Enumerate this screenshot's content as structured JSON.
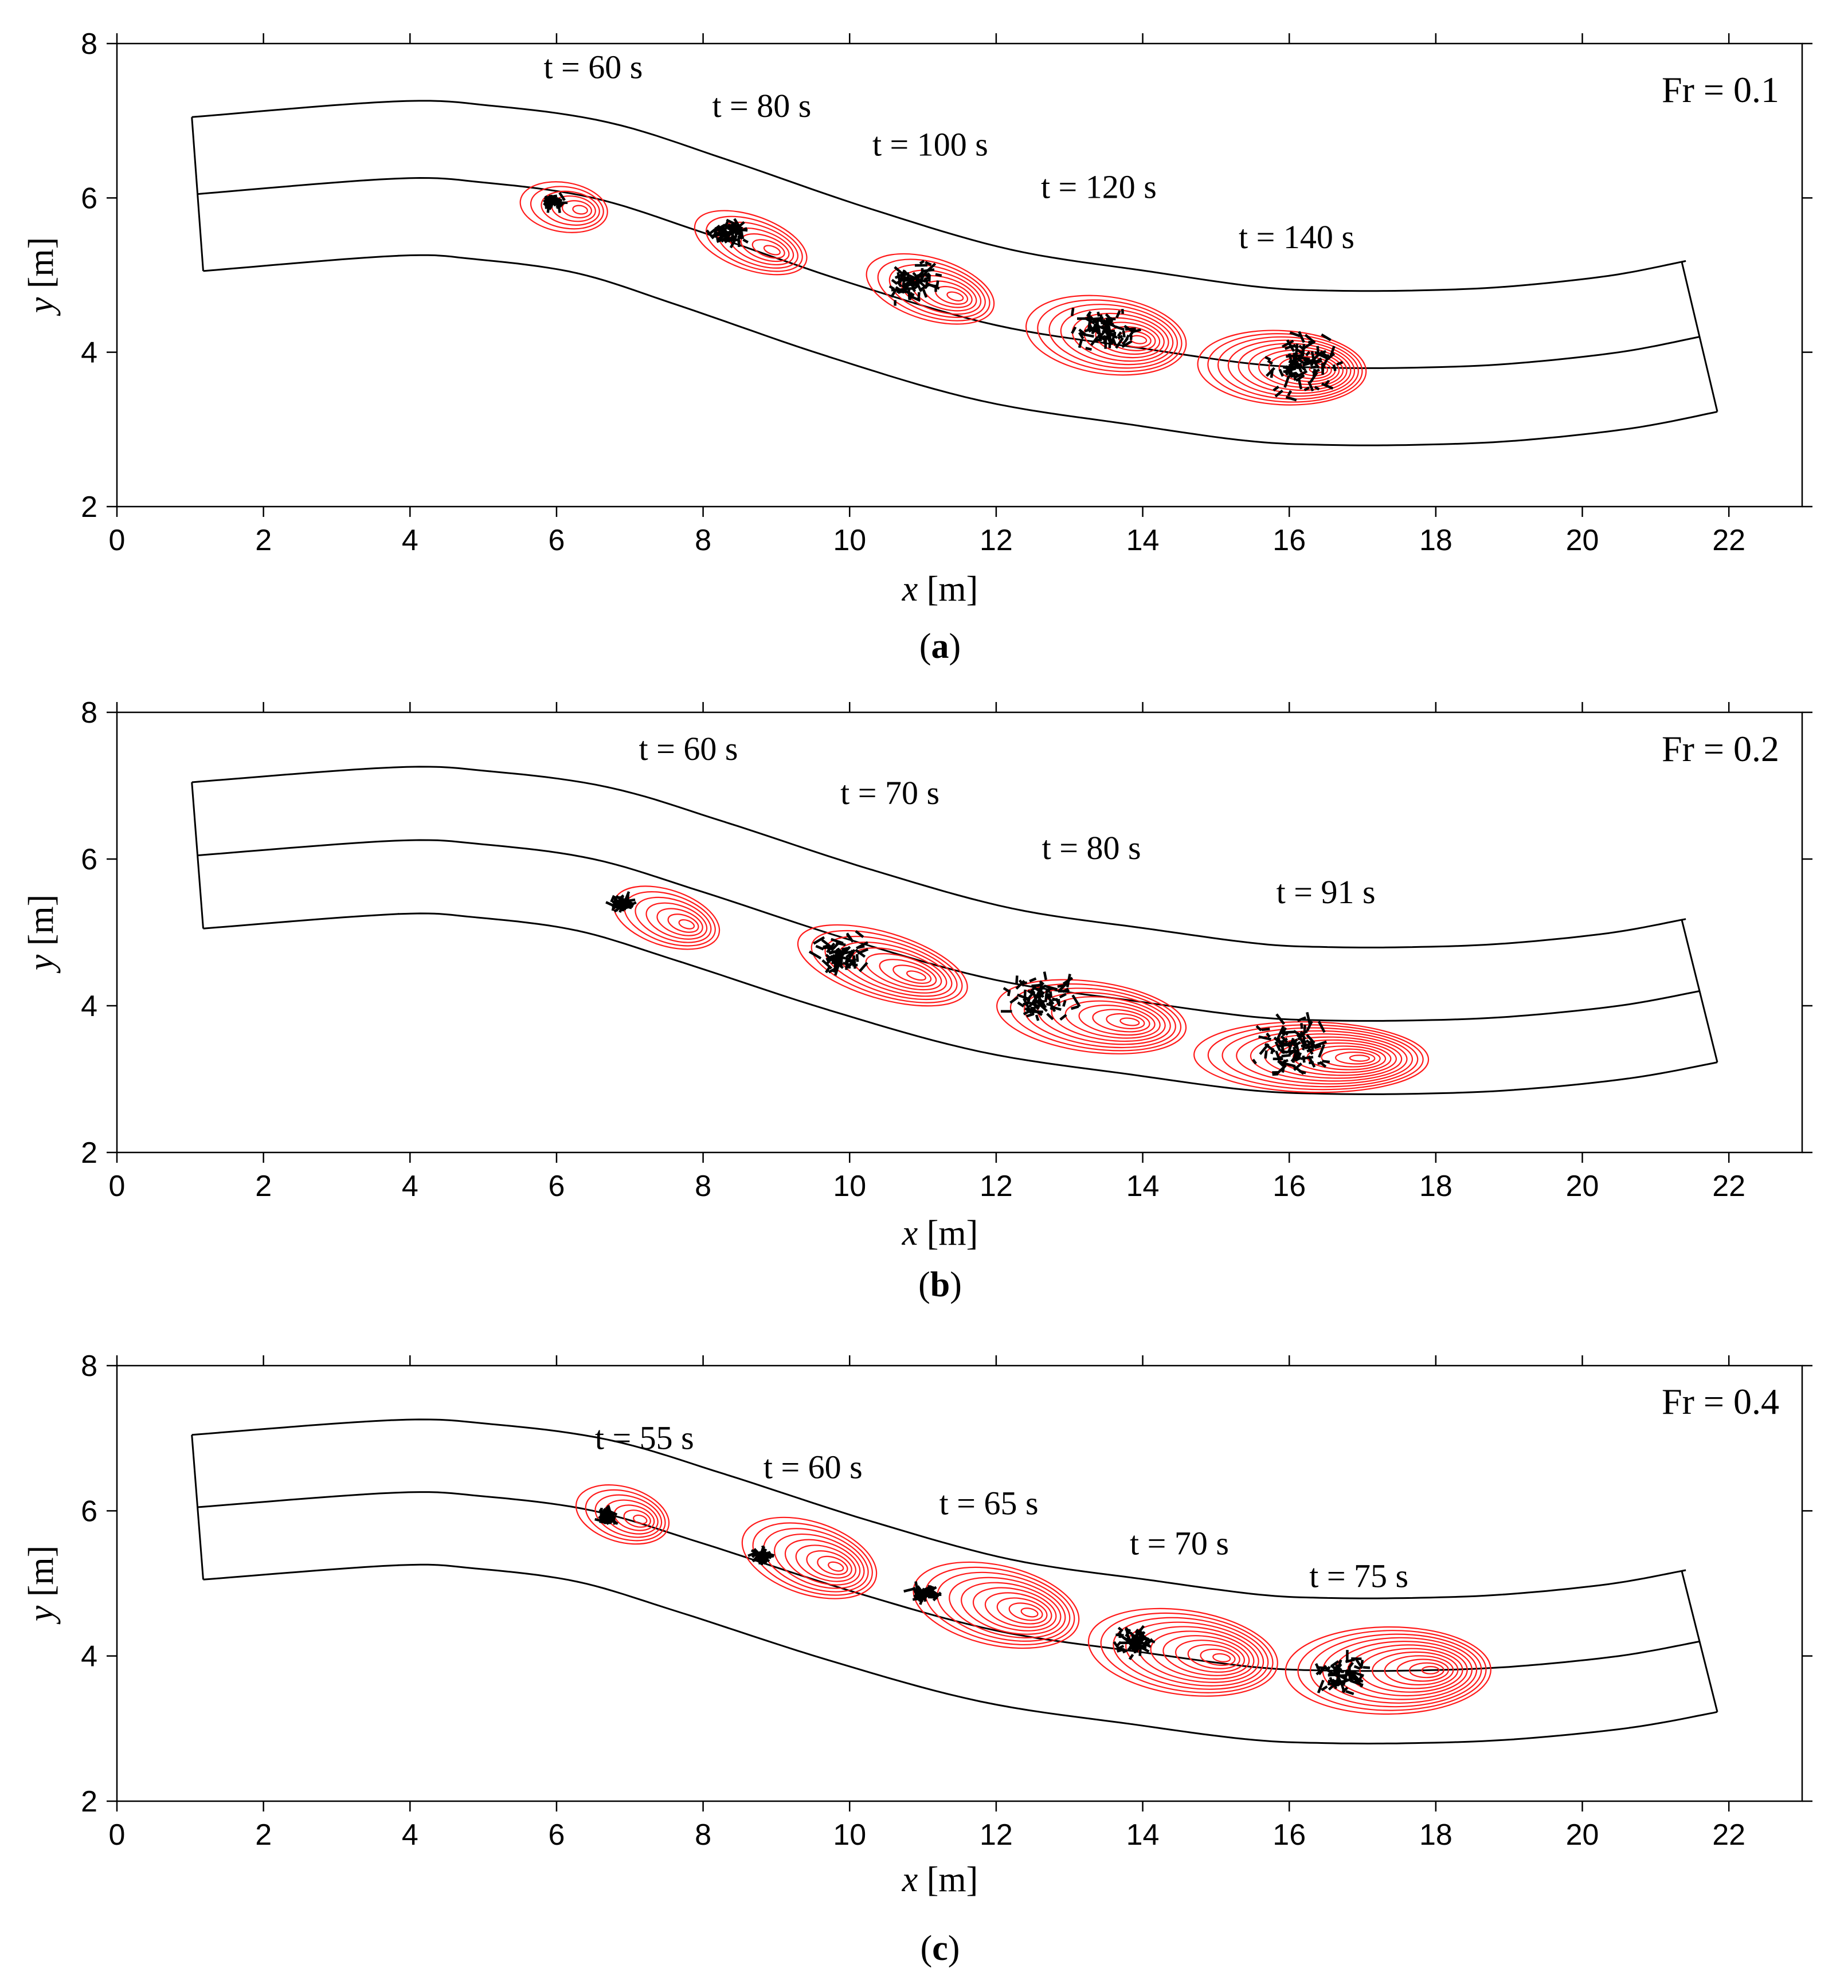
{
  "chart_data": [
    {
      "type": "contour",
      "panel_label": "a",
      "xlabel_var": "x",
      "xlabel_unit": "[m]",
      "ylabel_var": "y",
      "ylabel_unit": "[m]",
      "xlim": [
        0,
        23
      ],
      "ylim": [
        2,
        8
      ],
      "x_ticks": [
        0,
        2,
        4,
        6,
        8,
        10,
        12,
        14,
        16,
        18,
        20,
        22
      ],
      "y_ticks": [
        2,
        4,
        6,
        8
      ],
      "froude_label": "Fr = 0.1",
      "snapshots": [
        {
          "label": "t = 60 s",
          "label_x": 6.5,
          "label_y": 7.55,
          "cx": 6.1,
          "cy": 5.88,
          "rx": 0.6,
          "ry": 0.32,
          "n": 6,
          "px": 5.95,
          "py": 5.95,
          "spread": 0.15
        },
        {
          "label": "t = 80 s",
          "label_x": 8.8,
          "label_y": 7.05,
          "cx": 8.65,
          "cy": 5.42,
          "rx": 0.8,
          "ry": 0.35,
          "n": 7,
          "px": 8.35,
          "py": 5.55,
          "spread": 0.3
        },
        {
          "label": "t = 100 s",
          "label_x": 11.1,
          "label_y": 6.55,
          "cx": 11.1,
          "cy": 4.82,
          "rx": 0.9,
          "ry": 0.4,
          "n": 8,
          "px": 10.9,
          "py": 4.9,
          "spread": 0.45
        },
        {
          "label": "t = 120 s",
          "label_x": 13.4,
          "label_y": 6.0,
          "cx": 13.5,
          "cy": 4.22,
          "rx": 1.1,
          "ry": 0.5,
          "n": 10,
          "px": 13.5,
          "py": 4.3,
          "spread": 0.6
        },
        {
          "label": "t = 140 s",
          "label_x": 16.1,
          "label_y": 5.35,
          "cx": 15.9,
          "cy": 3.8,
          "rx": 1.15,
          "ry": 0.48,
          "n": 12,
          "px": 16.2,
          "py": 3.85,
          "spread": 0.7
        }
      ]
    },
    {
      "type": "contour",
      "panel_label": "b",
      "xlabel_var": "x",
      "xlabel_unit": "[m]",
      "ylabel_var": "y",
      "ylabel_unit": "[m]",
      "xlim": [
        0,
        23
      ],
      "ylim": [
        2,
        8
      ],
      "x_ticks": [
        0,
        2,
        4,
        6,
        8,
        10,
        12,
        14,
        16,
        18,
        20,
        22
      ],
      "y_ticks": [
        2,
        4,
        6,
        8
      ],
      "froude_label": "Fr = 0.2",
      "snapshots": [
        {
          "label": "t = 60 s",
          "label_x": 7.8,
          "label_y": 7.35,
          "cx": 7.5,
          "cy": 5.2,
          "rx": 0.75,
          "ry": 0.38,
          "n": 7,
          "px": 6.9,
          "py": 5.4,
          "spread": 0.2
        },
        {
          "label": "t = 70 s",
          "label_x": 10.55,
          "label_y": 6.75,
          "cx": 10.45,
          "cy": 4.55,
          "rx": 1.2,
          "ry": 0.45,
          "n": 9,
          "px": 9.9,
          "py": 4.7,
          "spread": 0.45
        },
        {
          "label": "t = 80 s",
          "label_x": 13.3,
          "label_y": 6.0,
          "cx": 13.3,
          "cy": 3.85,
          "rx": 1.3,
          "ry": 0.48,
          "n": 10,
          "px": 12.6,
          "py": 4.1,
          "spread": 0.6
        },
        {
          "label": "t = 91 s",
          "label_x": 16.5,
          "label_y": 5.4,
          "cx": 16.3,
          "cy": 3.3,
          "rx": 1.6,
          "ry": 0.48,
          "n": 12,
          "px": 16.0,
          "py": 3.45,
          "spread": 0.75
        }
      ]
    },
    {
      "type": "contour",
      "panel_label": "c",
      "xlabel_var": "x",
      "xlabel_unit": "[m]",
      "ylabel_var": "y",
      "ylabel_unit": "[m]",
      "xlim": [
        0,
        23
      ],
      "ylim": [
        2,
        8
      ],
      "x_ticks": [
        0,
        2,
        4,
        6,
        8,
        10,
        12,
        14,
        16,
        18,
        20,
        22
      ],
      "y_ticks": [
        2,
        4,
        6,
        8
      ],
      "froude_label": "Fr = 0.4",
      "snapshots": [
        {
          "label": "t = 55 s",
          "label_x": 7.2,
          "label_y": 6.85,
          "cx": 6.9,
          "cy": 5.95,
          "rx": 0.65,
          "ry": 0.38,
          "n": 7,
          "px": 6.7,
          "py": 5.92,
          "spread": 0.12
        },
        {
          "label": "t = 60 s",
          "label_x": 9.5,
          "label_y": 6.45,
          "cx": 9.45,
          "cy": 5.35,
          "rx": 0.95,
          "ry": 0.5,
          "n": 9,
          "px": 8.8,
          "py": 5.38,
          "spread": 0.15
        },
        {
          "label": "t = 65 s",
          "label_x": 11.9,
          "label_y": 5.95,
          "cx": 12.0,
          "cy": 4.7,
          "rx": 1.15,
          "ry": 0.55,
          "n": 10,
          "px": 11.0,
          "py": 4.85,
          "spread": 0.22
        },
        {
          "label": "t = 70 s",
          "label_x": 14.5,
          "label_y": 5.4,
          "cx": 14.55,
          "cy": 4.05,
          "rx": 1.3,
          "ry": 0.58,
          "n": 11,
          "px": 13.9,
          "py": 4.2,
          "spread": 0.35
        },
        {
          "label": "t = 75 s",
          "label_x": 16.95,
          "label_y": 4.95,
          "cx": 17.35,
          "cy": 3.8,
          "rx": 1.4,
          "ry": 0.6,
          "n": 12,
          "px": 16.7,
          "py": 3.75,
          "spread": 0.45
        }
      ]
    }
  ],
  "channel": {
    "centerline_x": [
      1.1,
      3.8,
      5.0,
      6.5,
      8.0,
      10.0,
      12.0,
      14.0,
      15.5,
      16.5,
      17.7,
      19.0,
      20.5,
      21.6
    ],
    "centerline_y": [
      6.05,
      6.25,
      6.2,
      6.0,
      5.55,
      4.9,
      4.35,
      4.05,
      3.85,
      3.8,
      3.8,
      3.85,
      4.0,
      4.2
    ],
    "half_width_m": 1.0
  }
}
